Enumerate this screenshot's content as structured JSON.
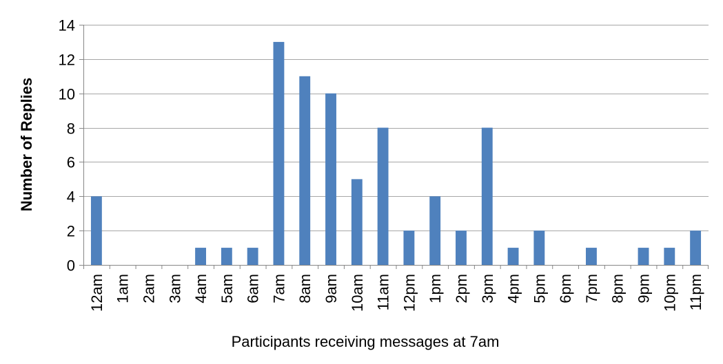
{
  "chart_data": {
    "type": "bar",
    "title": "",
    "xlabel": "Participants receiving messages at 7am",
    "ylabel": "Number of Replies",
    "ylim": [
      0,
      14
    ],
    "yticks": [
      0,
      2,
      4,
      6,
      8,
      10,
      12,
      14
    ],
    "grid": true,
    "legend": "none",
    "bar_color": "#4f81bd",
    "categories": [
      "12am",
      "1am",
      "2am",
      "3am",
      "4am",
      "5am",
      "6am",
      "7am",
      "8am",
      "9am",
      "10am",
      "11am",
      "12pm",
      "1pm",
      "2pm",
      "3pm",
      "4pm",
      "5pm",
      "6pm",
      "7pm",
      "8pm",
      "9pm",
      "10pm",
      "11pm"
    ],
    "values": [
      4,
      0,
      0,
      0,
      1,
      1,
      1,
      13,
      11,
      10,
      5,
      8,
      2,
      4,
      2,
      8,
      1,
      2,
      0,
      1,
      0,
      1,
      1,
      2
    ]
  }
}
